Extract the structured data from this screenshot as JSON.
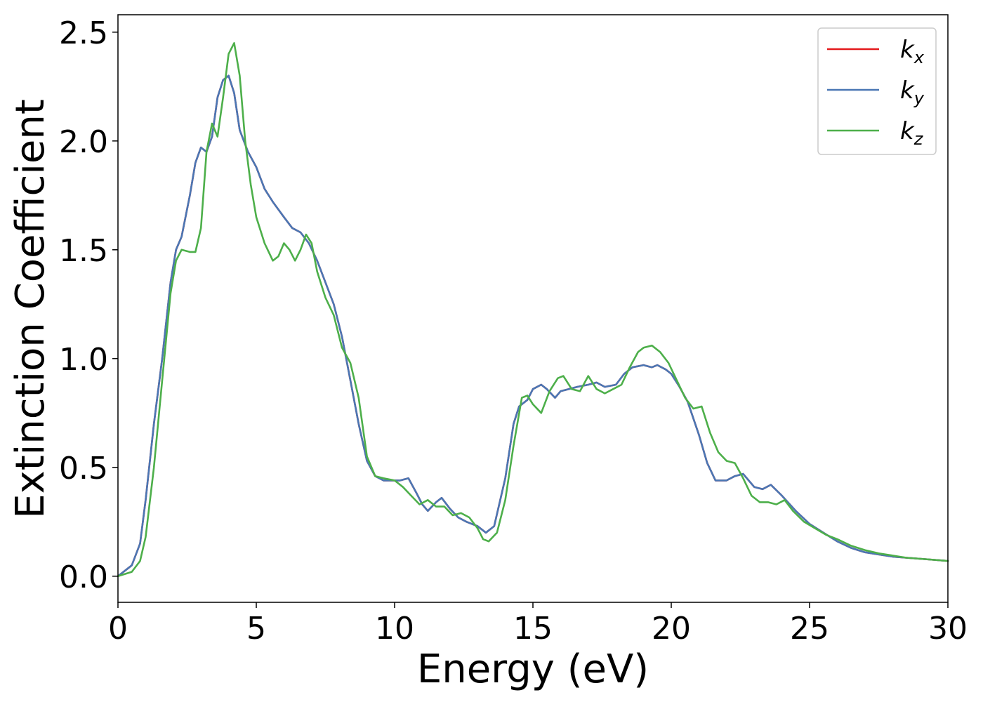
{
  "chart_data": {
    "type": "line",
    "xlabel": "Energy (eV)",
    "ylabel": "Extinction Coefficient",
    "xlim": [
      0,
      30
    ],
    "ylim": [
      -0.12,
      2.58
    ],
    "xticks": [
      "0",
      "5",
      "10",
      "15",
      "20",
      "25",
      "30"
    ],
    "yticks": [
      "0.0",
      "0.5",
      "1.0",
      "1.5",
      "2.0",
      "2.5"
    ],
    "grid": false,
    "legend_position": "top-right",
    "series": [
      {
        "name": "k_x",
        "legend_base": "k",
        "legend_sub": "x",
        "color": "#e41a1c",
        "x": [
          0,
          0.5,
          0.8,
          1.0,
          1.3,
          1.6,
          1.9,
          2.1,
          2.3,
          2.6,
          2.8,
          3.0,
          3.2,
          3.4,
          3.6,
          3.8,
          4.0,
          4.2,
          4.4,
          4.7,
          5.0,
          5.3,
          5.6,
          6.0,
          6.3,
          6.6,
          6.9,
          7.2,
          7.5,
          7.8,
          8.1,
          8.4,
          8.7,
          9.0,
          9.3,
          9.6,
          10.0,
          10.2,
          10.5,
          10.8,
          11.0,
          11.2,
          11.5,
          11.7,
          12.0,
          12.3,
          12.6,
          13.0,
          13.3,
          13.6,
          14.0,
          14.3,
          14.5,
          14.8,
          15.0,
          15.3,
          15.5,
          15.8,
          16.0,
          16.3,
          16.6,
          17.0,
          17.3,
          17.6,
          18.0,
          18.3,
          18.6,
          19.0,
          19.3,
          19.5,
          19.8,
          20.0,
          20.3,
          20.6,
          21.0,
          21.3,
          21.6,
          22.0,
          22.3,
          22.6,
          23.0,
          23.3,
          23.6,
          24.0,
          24.5,
          25.0,
          25.5,
          26.0,
          26.5,
          27.0,
          27.5,
          28.0,
          28.5,
          29.0,
          29.5,
          30.0
        ],
        "y": [
          0.0,
          0.05,
          0.15,
          0.35,
          0.7,
          1.0,
          1.35,
          1.5,
          1.56,
          1.75,
          1.9,
          1.97,
          1.95,
          2.02,
          2.2,
          2.28,
          2.3,
          2.22,
          2.05,
          1.95,
          1.88,
          1.78,
          1.72,
          1.65,
          1.6,
          1.58,
          1.53,
          1.45,
          1.35,
          1.25,
          1.1,
          0.9,
          0.7,
          0.53,
          0.46,
          0.44,
          0.44,
          0.44,
          0.45,
          0.38,
          0.33,
          0.3,
          0.34,
          0.36,
          0.31,
          0.27,
          0.25,
          0.23,
          0.2,
          0.23,
          0.45,
          0.7,
          0.78,
          0.81,
          0.86,
          0.88,
          0.86,
          0.82,
          0.85,
          0.86,
          0.87,
          0.88,
          0.89,
          0.87,
          0.88,
          0.93,
          0.96,
          0.97,
          0.96,
          0.97,
          0.95,
          0.93,
          0.87,
          0.8,
          0.65,
          0.52,
          0.44,
          0.44,
          0.46,
          0.47,
          0.41,
          0.4,
          0.42,
          0.37,
          0.3,
          0.24,
          0.2,
          0.16,
          0.13,
          0.11,
          0.1,
          0.09,
          0.085,
          0.08,
          0.075,
          0.07
        ]
      },
      {
        "name": "k_y",
        "legend_base": "k",
        "legend_sub": "y",
        "color": "#4a77b4",
        "x": [
          0,
          0.5,
          0.8,
          1.0,
          1.3,
          1.6,
          1.9,
          2.1,
          2.3,
          2.6,
          2.8,
          3.0,
          3.2,
          3.4,
          3.6,
          3.8,
          4.0,
          4.2,
          4.4,
          4.7,
          5.0,
          5.3,
          5.6,
          6.0,
          6.3,
          6.6,
          6.9,
          7.2,
          7.5,
          7.8,
          8.1,
          8.4,
          8.7,
          9.0,
          9.3,
          9.6,
          10.0,
          10.2,
          10.5,
          10.8,
          11.0,
          11.2,
          11.5,
          11.7,
          12.0,
          12.3,
          12.6,
          13.0,
          13.3,
          13.6,
          14.0,
          14.3,
          14.5,
          14.8,
          15.0,
          15.3,
          15.5,
          15.8,
          16.0,
          16.3,
          16.6,
          17.0,
          17.3,
          17.6,
          18.0,
          18.3,
          18.6,
          19.0,
          19.3,
          19.5,
          19.8,
          20.0,
          20.3,
          20.6,
          21.0,
          21.3,
          21.6,
          22.0,
          22.3,
          22.6,
          23.0,
          23.3,
          23.6,
          24.0,
          24.5,
          25.0,
          25.5,
          26.0,
          26.5,
          27.0,
          27.5,
          28.0,
          28.5,
          29.0,
          29.5,
          30.0
        ],
        "y": [
          0.0,
          0.05,
          0.15,
          0.35,
          0.7,
          1.0,
          1.35,
          1.5,
          1.56,
          1.75,
          1.9,
          1.97,
          1.95,
          2.02,
          2.2,
          2.28,
          2.3,
          2.22,
          2.05,
          1.95,
          1.88,
          1.78,
          1.72,
          1.65,
          1.6,
          1.58,
          1.53,
          1.45,
          1.35,
          1.25,
          1.1,
          0.9,
          0.7,
          0.53,
          0.46,
          0.44,
          0.44,
          0.44,
          0.45,
          0.38,
          0.33,
          0.3,
          0.34,
          0.36,
          0.31,
          0.27,
          0.25,
          0.23,
          0.2,
          0.23,
          0.45,
          0.7,
          0.78,
          0.81,
          0.86,
          0.88,
          0.86,
          0.82,
          0.85,
          0.86,
          0.87,
          0.88,
          0.89,
          0.87,
          0.88,
          0.93,
          0.96,
          0.97,
          0.96,
          0.97,
          0.95,
          0.93,
          0.87,
          0.8,
          0.65,
          0.52,
          0.44,
          0.44,
          0.46,
          0.47,
          0.41,
          0.4,
          0.42,
          0.37,
          0.3,
          0.24,
          0.2,
          0.16,
          0.13,
          0.11,
          0.1,
          0.09,
          0.085,
          0.08,
          0.075,
          0.07
        ]
      },
      {
        "name": "k_z",
        "legend_base": "k",
        "legend_sub": "z",
        "color": "#4daf4a",
        "x": [
          0,
          0.5,
          0.8,
          1.0,
          1.3,
          1.6,
          1.9,
          2.1,
          2.3,
          2.6,
          2.8,
          3.0,
          3.2,
          3.4,
          3.6,
          3.8,
          4.0,
          4.2,
          4.4,
          4.6,
          4.8,
          5.0,
          5.3,
          5.6,
          5.8,
          6.0,
          6.2,
          6.4,
          6.6,
          6.8,
          7.0,
          7.2,
          7.5,
          7.8,
          8.1,
          8.4,
          8.7,
          9.0,
          9.3,
          9.6,
          10.0,
          10.3,
          10.6,
          10.9,
          11.2,
          11.5,
          11.8,
          12.1,
          12.4,
          12.7,
          13.0,
          13.2,
          13.4,
          13.7,
          14.0,
          14.3,
          14.6,
          14.8,
          15.0,
          15.3,
          15.6,
          15.9,
          16.1,
          16.4,
          16.7,
          17.0,
          17.3,
          17.6,
          17.9,
          18.2,
          18.5,
          18.8,
          19.0,
          19.3,
          19.6,
          19.9,
          20.2,
          20.5,
          20.8,
          21.1,
          21.4,
          21.7,
          22.0,
          22.3,
          22.6,
          22.9,
          23.2,
          23.5,
          23.8,
          24.1,
          24.4,
          24.8,
          25.2,
          25.6,
          26.0,
          26.5,
          27.0,
          27.5,
          28.0,
          28.5,
          29.0,
          29.5,
          30.0
        ],
        "y": [
          0.0,
          0.02,
          0.07,
          0.18,
          0.5,
          0.9,
          1.3,
          1.45,
          1.5,
          1.49,
          1.49,
          1.6,
          1.95,
          2.08,
          2.02,
          2.2,
          2.4,
          2.45,
          2.3,
          2.0,
          1.8,
          1.65,
          1.53,
          1.45,
          1.47,
          1.53,
          1.5,
          1.45,
          1.5,
          1.57,
          1.53,
          1.4,
          1.28,
          1.2,
          1.05,
          0.98,
          0.82,
          0.55,
          0.46,
          0.45,
          0.44,
          0.41,
          0.37,
          0.33,
          0.35,
          0.32,
          0.32,
          0.28,
          0.29,
          0.27,
          0.22,
          0.17,
          0.16,
          0.2,
          0.35,
          0.6,
          0.82,
          0.83,
          0.79,
          0.75,
          0.85,
          0.91,
          0.92,
          0.86,
          0.85,
          0.92,
          0.86,
          0.84,
          0.86,
          0.88,
          0.96,
          1.03,
          1.05,
          1.06,
          1.03,
          0.98,
          0.9,
          0.82,
          0.77,
          0.78,
          0.66,
          0.57,
          0.53,
          0.52,
          0.45,
          0.37,
          0.34,
          0.34,
          0.33,
          0.35,
          0.3,
          0.25,
          0.22,
          0.19,
          0.17,
          0.14,
          0.12,
          0.105,
          0.095,
          0.085,
          0.08,
          0.075,
          0.07
        ]
      }
    ]
  }
}
